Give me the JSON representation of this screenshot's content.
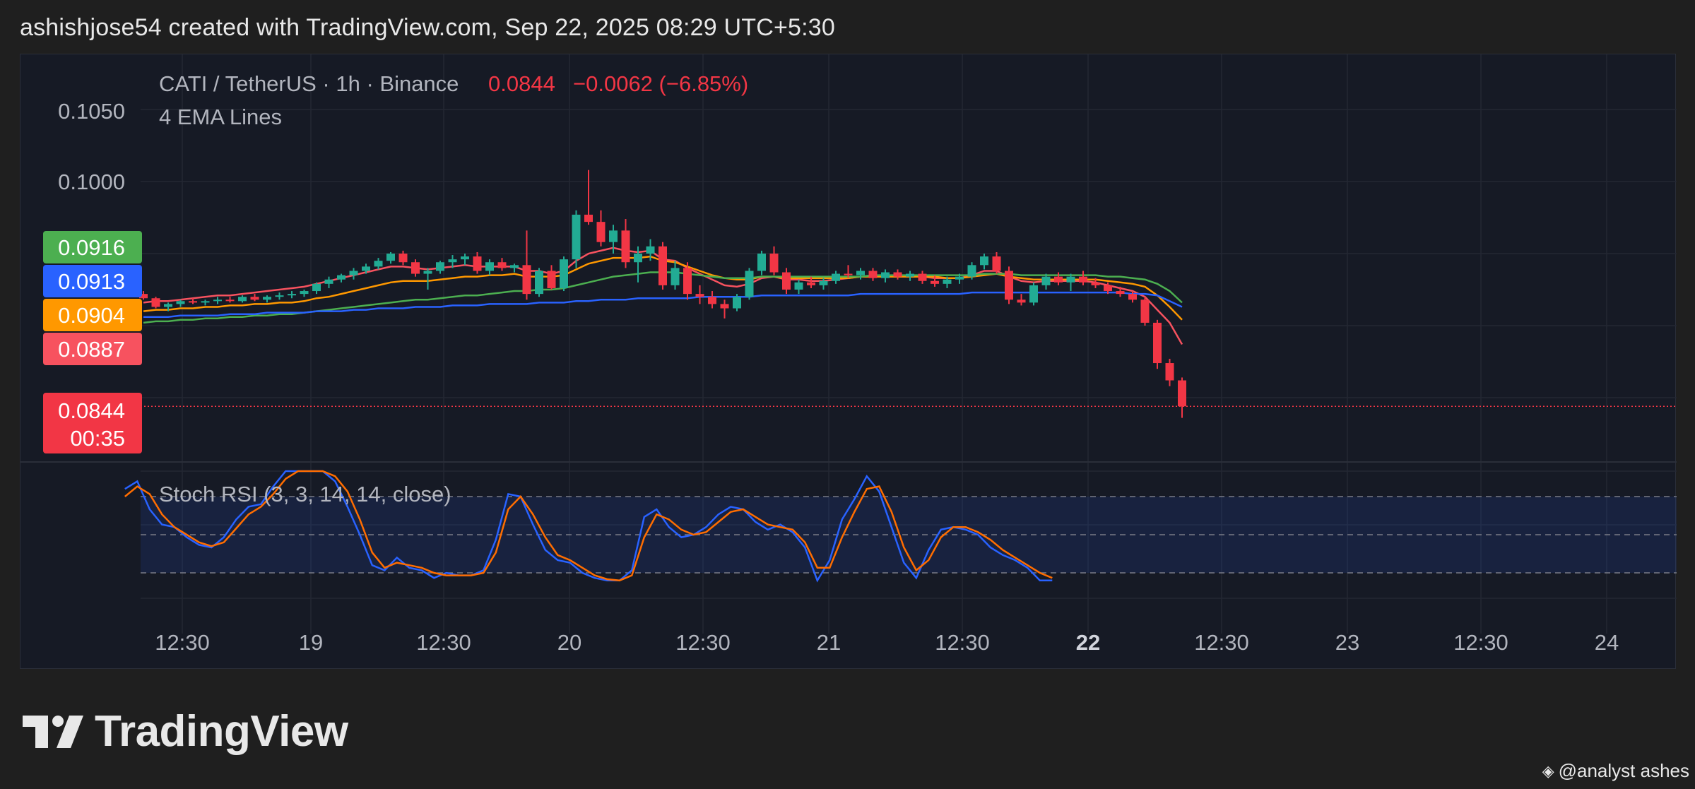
{
  "caption": "ashishjose54 created with TradingView.com, Sep 22, 2025 08:29 UTC+5:30",
  "legend": {
    "symbol": "CATI / TetherUS · 1h · Binance",
    "price": "0.0844",
    "change": "−0.0062 (−6.85%)",
    "indicator": "4 EMA Lines"
  },
  "colors": {
    "up": "#22ab94",
    "down": "#f23645",
    "ema_fast": "#f7525f",
    "ema_mid": "#ff9800",
    "ema_slow": "#4caf50",
    "ema_long": "#2962ff",
    "stoch_k": "#2962ff",
    "stoch_d": "#ff6d00"
  },
  "price_scale": {
    "ticks": [
      "0.1050",
      "0.1000"
    ],
    "ema_badges": [
      {
        "label": "0.0916",
        "value": 0.0916,
        "color": "#4caf50"
      },
      {
        "label": "0.0913",
        "value": 0.0913,
        "color": "#2962ff"
      },
      {
        "label": "0.0904",
        "value": 0.0904,
        "color": "#ff9800"
      },
      {
        "label": "0.0887",
        "value": 0.0887,
        "color": "#f7525f"
      }
    ],
    "last_price": {
      "label": "0.0844",
      "value": 0.0844,
      "countdown": "00:35"
    }
  },
  "time_axis": {
    "labels": [
      "12:30",
      "19",
      "12:30",
      "20",
      "12:30",
      "21",
      "12:30",
      "22",
      "12:30",
      "23",
      "12:30",
      "24"
    ],
    "bold_index": 7
  },
  "stoch_rsi": {
    "label": "Stoch RSI (3, 3, 14, 14, close)",
    "levels": [
      80,
      50,
      20
    ],
    "k": [
      86,
      92,
      70,
      58,
      56,
      48,
      42,
      40,
      48,
      62,
      72,
      74,
      88,
      100,
      100,
      100,
      100,
      92,
      72,
      50,
      26,
      22,
      32,
      24,
      22,
      16,
      20,
      18,
      18,
      22,
      46,
      82,
      80,
      58,
      38,
      30,
      28,
      20,
      16,
      14,
      14,
      22,
      64,
      70,
      56,
      48,
      50,
      56,
      66,
      72,
      70,
      60,
      54,
      58,
      52,
      40,
      14,
      30,
      62,
      78,
      96,
      84,
      56,
      28,
      16,
      38,
      54,
      56,
      54,
      50,
      40,
      34,
      30,
      24,
      14,
      14
    ],
    "d": [
      80,
      88,
      82,
      66,
      56,
      50,
      44,
      41,
      44,
      55,
      66,
      72,
      82,
      94,
      100,
      100,
      100,
      96,
      84,
      62,
      36,
      24,
      28,
      26,
      24,
      20,
      18,
      18,
      18,
      20,
      36,
      70,
      80,
      66,
      48,
      34,
      30,
      24,
      18,
      15,
      14,
      18,
      48,
      66,
      62,
      54,
      50,
      52,
      60,
      68,
      70,
      64,
      58,
      56,
      54,
      44,
      24,
      24,
      48,
      68,
      86,
      88,
      68,
      40,
      22,
      30,
      48,
      56,
      56,
      52,
      46,
      38,
      32,
      26,
      20,
      16
    ]
  },
  "chart_data": {
    "type": "candlestick",
    "title": "CATI / TetherUS · 1h · Binance",
    "x_start": "2025-09-18 10:00",
    "x_interval": "1h",
    "y_range": [
      0.0835,
      0.1065
    ],
    "candles": [
      [
        0.0922,
        0.0924,
        0.0918,
        0.0919
      ],
      [
        0.0919,
        0.092,
        0.0912,
        0.0913
      ],
      [
        0.0913,
        0.0916,
        0.091,
        0.0915
      ],
      [
        0.0915,
        0.0918,
        0.0913,
        0.0917
      ],
      [
        0.0917,
        0.0919,
        0.0915,
        0.0916
      ],
      [
        0.0916,
        0.0918,
        0.0914,
        0.0917
      ],
      [
        0.0917,
        0.092,
        0.0915,
        0.0918
      ],
      [
        0.0918,
        0.092,
        0.0916,
        0.0917
      ],
      [
        0.0917,
        0.0921,
        0.0916,
        0.092
      ],
      [
        0.092,
        0.0922,
        0.0917,
        0.0918
      ],
      [
        0.0918,
        0.0921,
        0.0916,
        0.092
      ],
      [
        0.092,
        0.0923,
        0.0918,
        0.0921
      ],
      [
        0.0921,
        0.0924,
        0.0919,
        0.0922
      ],
      [
        0.0922,
        0.0925,
        0.092,
        0.0924
      ],
      [
        0.0924,
        0.093,
        0.0922,
        0.0929
      ],
      [
        0.0929,
        0.0934,
        0.0926,
        0.0932
      ],
      [
        0.0932,
        0.0936,
        0.093,
        0.0935
      ],
      [
        0.0935,
        0.094,
        0.0932,
        0.0938
      ],
      [
        0.0938,
        0.0943,
        0.0936,
        0.0941
      ],
      [
        0.0941,
        0.0947,
        0.0939,
        0.0945
      ],
      [
        0.0945,
        0.0951,
        0.0943,
        0.095
      ],
      [
        0.095,
        0.0952,
        0.0942,
        0.0944
      ],
      [
        0.0944,
        0.0946,
        0.0934,
        0.0936
      ],
      [
        0.0936,
        0.094,
        0.0925,
        0.0938
      ],
      [
        0.0938,
        0.0945,
        0.0936,
        0.0944
      ],
      [
        0.0944,
        0.0949,
        0.094,
        0.0946
      ],
      [
        0.0946,
        0.095,
        0.0942,
        0.0948
      ],
      [
        0.0948,
        0.0951,
        0.0936,
        0.0938
      ],
      [
        0.0938,
        0.0946,
        0.0935,
        0.0944
      ],
      [
        0.0944,
        0.0947,
        0.0938,
        0.094
      ],
      [
        0.094,
        0.0943,
        0.0937,
        0.0942
      ],
      [
        0.0942,
        0.0966,
        0.0918,
        0.0922
      ],
      [
        0.0922,
        0.094,
        0.092,
        0.0938
      ],
      [
        0.0938,
        0.0942,
        0.0925,
        0.0926
      ],
      [
        0.0926,
        0.0948,
        0.0924,
        0.0946
      ],
      [
        0.0946,
        0.098,
        0.094,
        0.0977
      ],
      [
        0.0977,
        0.1008,
        0.097,
        0.0972
      ],
      [
        0.0972,
        0.098,
        0.0955,
        0.0958
      ],
      [
        0.0958,
        0.097,
        0.095,
        0.0966
      ],
      [
        0.0966,
        0.0974,
        0.094,
        0.0944
      ],
      [
        0.0944,
        0.0955,
        0.093,
        0.095
      ],
      [
        0.095,
        0.096,
        0.0945,
        0.0955
      ],
      [
        0.0955,
        0.0958,
        0.0925,
        0.0928
      ],
      [
        0.0928,
        0.0945,
        0.0925,
        0.094
      ],
      [
        0.094,
        0.0944,
        0.0918,
        0.0922
      ],
      [
        0.0922,
        0.0928,
        0.0915,
        0.092
      ],
      [
        0.092,
        0.0924,
        0.0912,
        0.0915
      ],
      [
        0.0915,
        0.0918,
        0.0905,
        0.0912
      ],
      [
        0.0912,
        0.0922,
        0.091,
        0.092
      ],
      [
        0.092,
        0.094,
        0.0918,
        0.0938
      ],
      [
        0.0938,
        0.0952,
        0.0935,
        0.095
      ],
      [
        0.095,
        0.0955,
        0.0935,
        0.0937
      ],
      [
        0.0937,
        0.094,
        0.0922,
        0.0925
      ],
      [
        0.0925,
        0.0932,
        0.0922,
        0.093
      ],
      [
        0.093,
        0.0934,
        0.0926,
        0.0928
      ],
      [
        0.0928,
        0.0933,
        0.0925,
        0.0931
      ],
      [
        0.0931,
        0.0938,
        0.0929,
        0.0936
      ],
      [
        0.0936,
        0.0942,
        0.0933,
        0.0935
      ],
      [
        0.0935,
        0.094,
        0.0932,
        0.0938
      ],
      [
        0.0938,
        0.094,
        0.0931,
        0.0933
      ],
      [
        0.0933,
        0.0939,
        0.093,
        0.0937
      ],
      [
        0.0937,
        0.0939,
        0.0932,
        0.0934
      ],
      [
        0.0934,
        0.0938,
        0.0931,
        0.0936
      ],
      [
        0.0936,
        0.0938,
        0.0929,
        0.0931
      ],
      [
        0.0931,
        0.0935,
        0.0927,
        0.0929
      ],
      [
        0.0929,
        0.0934,
        0.0926,
        0.0932
      ],
      [
        0.0932,
        0.0936,
        0.0929,
        0.0934
      ],
      [
        0.0934,
        0.0944,
        0.0932,
        0.0942
      ],
      [
        0.0942,
        0.095,
        0.0939,
        0.0948
      ],
      [
        0.0948,
        0.0951,
        0.0936,
        0.0938
      ],
      [
        0.0938,
        0.0941,
        0.0915,
        0.0918
      ],
      [
        0.0918,
        0.0922,
        0.0914,
        0.0916
      ],
      [
        0.0916,
        0.093,
        0.0914,
        0.0928
      ],
      [
        0.0928,
        0.0936,
        0.0925,
        0.0934
      ],
      [
        0.0934,
        0.0937,
        0.0928,
        0.093
      ],
      [
        0.093,
        0.0936,
        0.0924,
        0.0934
      ],
      [
        0.0934,
        0.0938,
        0.0928,
        0.093
      ],
      [
        0.093,
        0.0933,
        0.0926,
        0.0928
      ],
      [
        0.0928,
        0.093,
        0.0922,
        0.0924
      ],
      [
        0.0924,
        0.0927,
        0.092,
        0.0922
      ],
      [
        0.0922,
        0.0924,
        0.0916,
        0.0918
      ],
      [
        0.0918,
        0.092,
        0.09,
        0.0902
      ],
      [
        0.0902,
        0.0904,
        0.087,
        0.0874
      ],
      [
        0.0874,
        0.0877,
        0.0858,
        0.0862
      ],
      [
        0.0862,
        0.0864,
        0.0836,
        0.0844
      ]
    ],
    "ema_series": [
      {
        "color": "#f7525f",
        "values": [
          0.0916,
          0.0917,
          0.0917,
          0.0918,
          0.0919,
          0.092,
          0.0921,
          0.0921,
          0.0922,
          0.0923,
          0.0924,
          0.0925,
          0.0926,
          0.0927,
          0.0929,
          0.0931,
          0.0933,
          0.0935,
          0.0937,
          0.0939,
          0.0941,
          0.0941,
          0.094,
          0.0939,
          0.094,
          0.0941,
          0.0942,
          0.0941,
          0.0941,
          0.0941,
          0.0941,
          0.0938,
          0.0938,
          0.0936,
          0.0938,
          0.0945,
          0.095,
          0.0952,
          0.0954,
          0.0952,
          0.0951,
          0.0952,
          0.0946,
          0.0945,
          0.094,
          0.0936,
          0.0932,
          0.0928,
          0.0927,
          0.0929,
          0.0933,
          0.0934,
          0.0932,
          0.0932,
          0.0931,
          0.0931,
          0.0932,
          0.0933,
          0.0934,
          0.0934,
          0.0934,
          0.0934,
          0.0934,
          0.0934,
          0.0933,
          0.0933,
          0.0933,
          0.0935,
          0.0938,
          0.0938,
          0.0934,
          0.0931,
          0.093,
          0.0931,
          0.0931,
          0.0931,
          0.0931,
          0.093,
          0.0928,
          0.0926,
          0.0924,
          0.092,
          0.0911,
          0.0902,
          0.0887
        ]
      },
      {
        "color": "#ff9800",
        "values": [
          0.091,
          0.0911,
          0.0911,
          0.0912,
          0.0912,
          0.0913,
          0.0913,
          0.0914,
          0.0914,
          0.0915,
          0.0915,
          0.0916,
          0.0916,
          0.0917,
          0.0919,
          0.092,
          0.0922,
          0.0924,
          0.0926,
          0.0928,
          0.093,
          0.0931,
          0.0931,
          0.0931,
          0.0932,
          0.0933,
          0.0934,
          0.0934,
          0.0935,
          0.0935,
          0.0936,
          0.0934,
          0.0934,
          0.0934,
          0.0935,
          0.0939,
          0.0943,
          0.0945,
          0.0947,
          0.0947,
          0.0947,
          0.0948,
          0.0945,
          0.0944,
          0.0941,
          0.0938,
          0.0935,
          0.0933,
          0.0932,
          0.0932,
          0.0934,
          0.0934,
          0.0933,
          0.0933,
          0.0933,
          0.0933,
          0.0933,
          0.0933,
          0.0934,
          0.0934,
          0.0934,
          0.0934,
          0.0934,
          0.0934,
          0.0934,
          0.0933,
          0.0933,
          0.0934,
          0.0935,
          0.0936,
          0.0934,
          0.0933,
          0.0932,
          0.0932,
          0.0932,
          0.0932,
          0.0932,
          0.0932,
          0.0931,
          0.093,
          0.0929,
          0.0927,
          0.0921,
          0.0913,
          0.0904
        ]
      },
      {
        "color": "#4caf50",
        "values": [
          0.0902,
          0.0903,
          0.0903,
          0.0904,
          0.0904,
          0.0905,
          0.0905,
          0.0906,
          0.0906,
          0.0907,
          0.0907,
          0.0908,
          0.0908,
          0.0909,
          0.091,
          0.0911,
          0.0912,
          0.0913,
          0.0914,
          0.0915,
          0.0916,
          0.0917,
          0.0918,
          0.0918,
          0.0919,
          0.092,
          0.0921,
          0.0921,
          0.0922,
          0.0923,
          0.0924,
          0.0924,
          0.0925,
          0.0925,
          0.0926,
          0.0928,
          0.093,
          0.0932,
          0.0934,
          0.0935,
          0.0936,
          0.0937,
          0.0937,
          0.0937,
          0.0936,
          0.0935,
          0.0934,
          0.0933,
          0.0933,
          0.0933,
          0.0934,
          0.0934,
          0.0934,
          0.0934,
          0.0934,
          0.0934,
          0.0934,
          0.0934,
          0.0934,
          0.0935,
          0.0935,
          0.0935,
          0.0935,
          0.0935,
          0.0935,
          0.0935,
          0.0935,
          0.0935,
          0.0936,
          0.0936,
          0.0936,
          0.0935,
          0.0935,
          0.0935,
          0.0935,
          0.0935,
          0.0935,
          0.0935,
          0.0934,
          0.0934,
          0.0933,
          0.0932,
          0.0929,
          0.0924,
          0.0916
        ]
      },
      {
        "color": "#2962ff",
        "values": [
          0.0906,
          0.0906,
          0.0906,
          0.0907,
          0.0907,
          0.0907,
          0.0907,
          0.0908,
          0.0908,
          0.0908,
          0.0909,
          0.0909,
          0.0909,
          0.0909,
          0.091,
          0.091,
          0.091,
          0.0911,
          0.0911,
          0.0912,
          0.0912,
          0.0912,
          0.0913,
          0.0913,
          0.0913,
          0.0914,
          0.0914,
          0.0914,
          0.0915,
          0.0915,
          0.0915,
          0.0915,
          0.0916,
          0.0916,
          0.0916,
          0.0917,
          0.0917,
          0.0918,
          0.0918,
          0.0918,
          0.0919,
          0.0919,
          0.0919,
          0.0919,
          0.0919,
          0.092,
          0.092,
          0.092,
          0.092,
          0.092,
          0.0921,
          0.0921,
          0.0921,
          0.0921,
          0.0921,
          0.0921,
          0.0921,
          0.0921,
          0.0922,
          0.0922,
          0.0922,
          0.0922,
          0.0922,
          0.0922,
          0.0922,
          0.0922,
          0.0922,
          0.0923,
          0.0923,
          0.0923,
          0.0923,
          0.0923,
          0.0923,
          0.0923,
          0.0923,
          0.0923,
          0.0923,
          0.0923,
          0.0923,
          0.0923,
          0.0922,
          0.0922,
          0.0921,
          0.0917,
          0.0913
        ]
      }
    ]
  },
  "brand": {
    "name": "TradingView"
  },
  "watermark": {
    "text": "@analyst ashes"
  }
}
